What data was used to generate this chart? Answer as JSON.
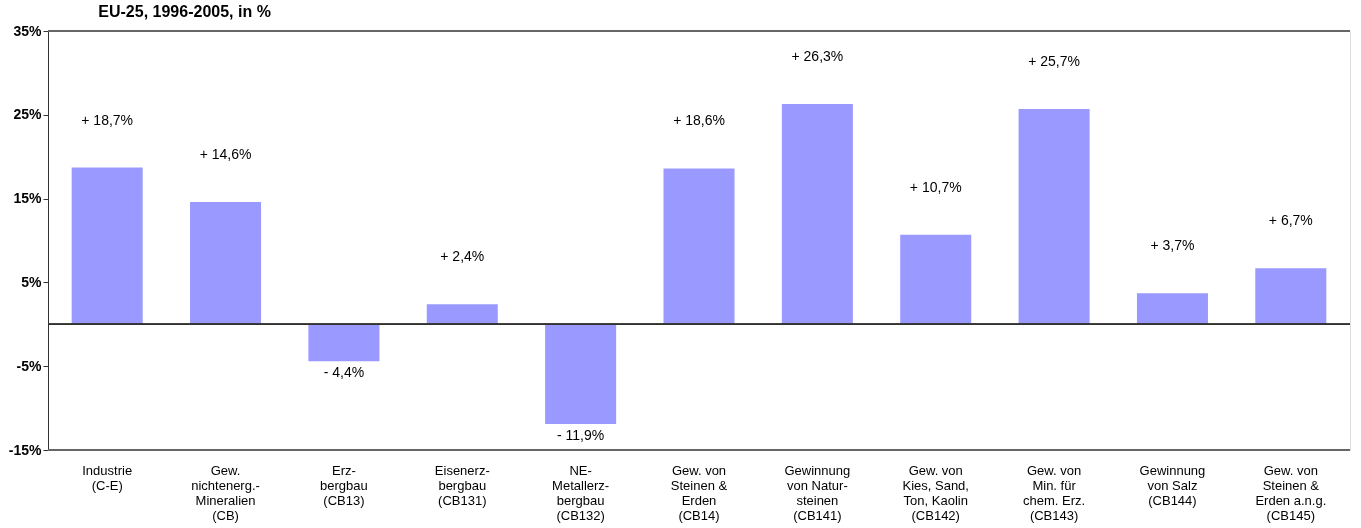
{
  "chart_data": {
    "type": "bar",
    "title": "EU-25, 1996-2005, in %",
    "categories": [
      "Industrie\n(C-E)",
      "Gew.\nnichtenerg.-\nMineralien\n(CB)",
      "Erz-\nbergbau\n(CB13)",
      "Eisenerz-\nbergbau\n(CB131)",
      "NE-\nMetallerz-\nbergbau\n(CB132)",
      "Gew. von\nSteinen &\nErden\n(CB14)",
      "Gewinnung\nvon Natur-\nsteinen\n(CB141)",
      "Gew. von\nKies, Sand,\nTon, Kaolin\n(CB142)",
      "Gew. von\nMin. für\nchem. Erz.\n(CB143)",
      "Gewinnung\nvon Salz\n(CB144)",
      "Gew. von\nSteinen &\nErden a.n.g.\n(CB145)"
    ],
    "values": [
      18.7,
      14.6,
      -4.4,
      2.4,
      -11.9,
      18.6,
      26.3,
      10.7,
      25.7,
      3.7,
      6.7
    ],
    "value_labels": [
      "+ 18,7%",
      "+ 14,6%",
      "- 4,4%",
      "+ 2,4%",
      "- 11,9%",
      "+ 18,6%",
      "+ 26,3%",
      "+ 10,7%",
      "+ 25,7%",
      "+ 3,7%",
      "+ 6,7%"
    ],
    "color": "#9999ff",
    "ylim": [
      -15,
      35
    ],
    "yticks": [
      {
        "value": -15,
        "label": "-15%"
      },
      {
        "value": -5,
        "label": "-5%"
      },
      {
        "value": 5,
        "label": "5%"
      },
      {
        "value": 15,
        "label": "15%"
      },
      {
        "value": 25,
        "label": "25%"
      },
      {
        "value": 35,
        "label": "35%"
      }
    ],
    "grid": false
  }
}
